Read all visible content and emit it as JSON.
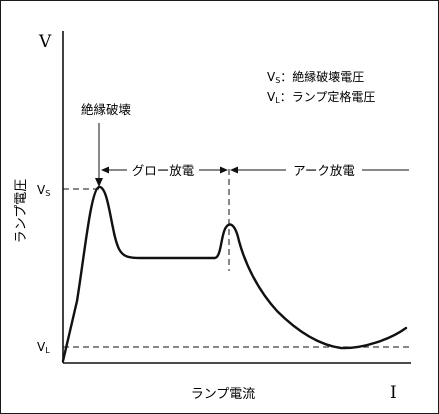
{
  "diagram": {
    "y_axis_symbol": "V",
    "x_axis_symbol": "I",
    "y_axis_label": "ランプ電圧",
    "x_axis_label": "ランプ電流",
    "tick_vs_main": "V",
    "tick_vs_sub": "S",
    "tick_vl_main": "V",
    "tick_vl_sub": "L",
    "breakdown_label": "絶縁破壊",
    "glow_label": "グロー放電",
    "arc_label": "アーク放電",
    "legend": [
      {
        "symbol_main": "V",
        "symbol_sub": "S",
        "text": "：絶縁破壊電圧"
      },
      {
        "symbol_main": "V",
        "symbol_sub": "L",
        "text": "：ランプ定格電圧"
      }
    ]
  },
  "colors": {
    "ink": "#111111",
    "background": "#ffffff"
  }
}
